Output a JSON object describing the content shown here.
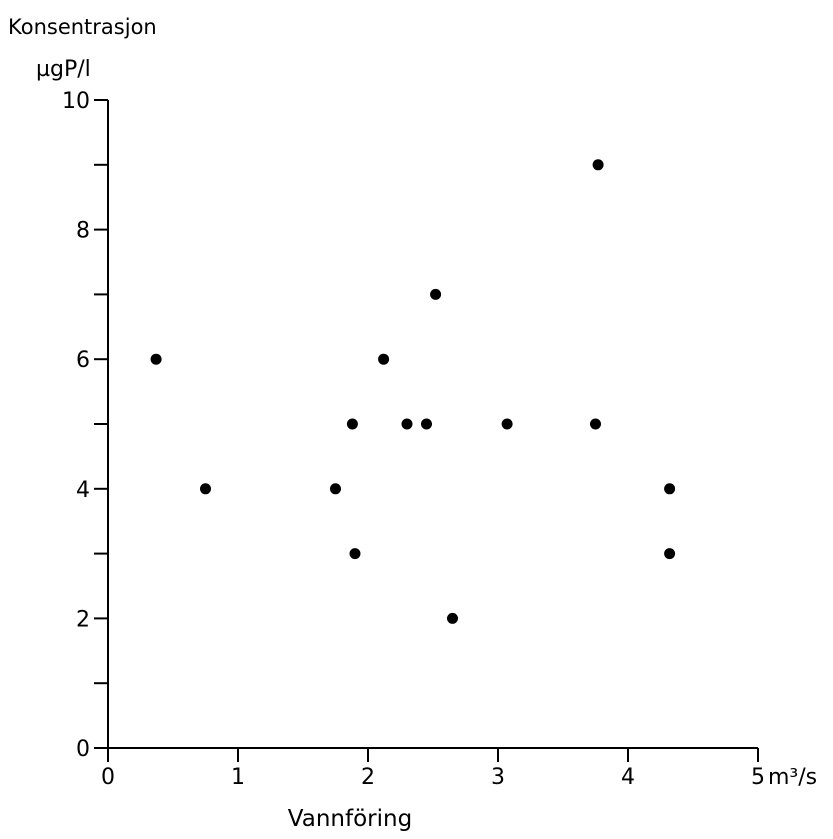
{
  "chart_data": {
    "type": "scatter",
    "ylabel": "Konsentrasjon",
    "yunit": "µgP/l",
    "xlabel": "Vannföring",
    "xunit": "m³/s",
    "xlim": [
      0,
      5
    ],
    "ylim": [
      0,
      10
    ],
    "x_ticks": [
      0,
      1,
      2,
      3,
      4,
      5
    ],
    "x_tick_labels": [
      "0",
      "1",
      "2",
      "3",
      "4",
      "5"
    ],
    "y_ticks": [
      0,
      1,
      2,
      3,
      4,
      5,
      6,
      7,
      8,
      9,
      10
    ],
    "y_tick_labels": [
      "0",
      "2",
      "4",
      "6",
      "8",
      "10"
    ],
    "y_labeled_ticks": [
      0,
      2,
      4,
      6,
      8,
      10
    ],
    "grid": false,
    "points": [
      {
        "x": 0.37,
        "y": 6
      },
      {
        "x": 0.75,
        "y": 4
      },
      {
        "x": 1.75,
        "y": 4
      },
      {
        "x": 1.88,
        "y": 5
      },
      {
        "x": 1.9,
        "y": 3
      },
      {
        "x": 2.12,
        "y": 6
      },
      {
        "x": 2.3,
        "y": 5
      },
      {
        "x": 2.45,
        "y": 5
      },
      {
        "x": 2.52,
        "y": 7
      },
      {
        "x": 2.65,
        "y": 2
      },
      {
        "x": 3.07,
        "y": 5
      },
      {
        "x": 3.75,
        "y": 5
      },
      {
        "x": 3.77,
        "y": 9
      },
      {
        "x": 4.32,
        "y": 4
      },
      {
        "x": 4.32,
        "y": 3
      }
    ]
  }
}
